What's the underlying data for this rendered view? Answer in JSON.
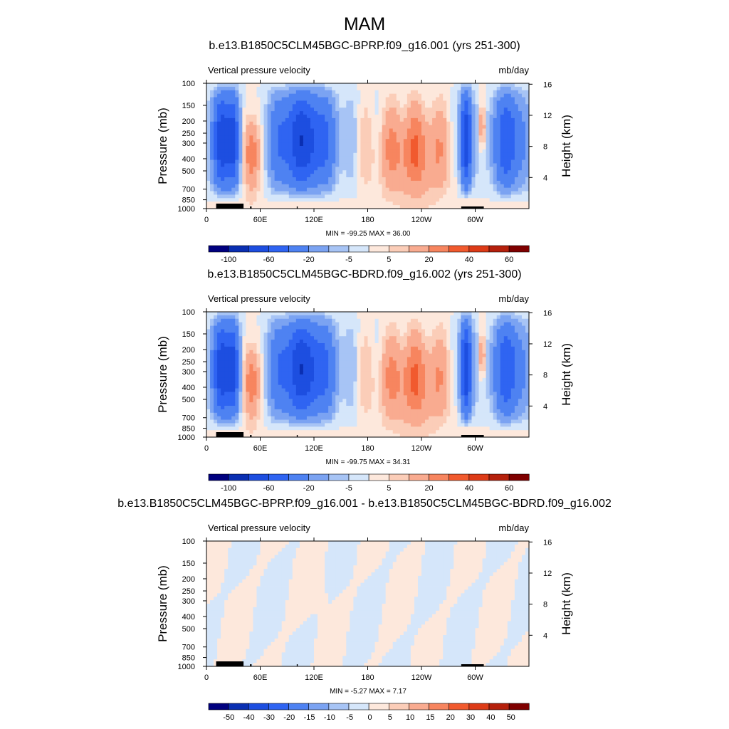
{
  "figure_title": "MAM",
  "chart_data": [
    {
      "type": "heatmap",
      "title": "b.e13.B1850C5CLM45BGC-BPRP.f09_g16.001 (yrs 251-300)",
      "subtitle_left": "Vertical pressure velocity",
      "subtitle_right": "mb/day",
      "ylabel": "Pressure (mb)",
      "ylabel_right": "Height (km)",
      "xticks": [
        "0",
        "60E",
        "120E",
        "180",
        "120W",
        "60W"
      ],
      "yticks": [
        "100",
        "150",
        "200",
        "250",
        "300",
        "400",
        "500",
        "700",
        "850",
        "1000"
      ],
      "ylim": [
        1000,
        100
      ],
      "y2ticks": [
        "16",
        "12",
        "8",
        "4"
      ],
      "stats": "MIN = -99.25  MAX =  36.00",
      "colorbar_labels": [
        "-100",
        "-60",
        "-20",
        "-5",
        "5",
        "20",
        "40",
        "60"
      ],
      "colorbar_colors": [
        "#00007f",
        "#0a2fb2",
        "#1d4ee0",
        "#2f64f2",
        "#4e82f2",
        "#7ba3f2",
        "#a7c4f5",
        "#d5e6fa",
        "#fde8dc",
        "#fbcdb8",
        "#f9ab90",
        "#f7855f",
        "#f15a2e",
        "#dd3b17",
        "#b5200c",
        "#7f0000"
      ],
      "min": -99.25,
      "max": 36.0
    },
    {
      "type": "heatmap",
      "title": "b.e13.B1850C5CLM45BGC-BDRD.f09_g16.002 (yrs 251-300)",
      "subtitle_left": "Vertical pressure velocity",
      "subtitle_right": "mb/day",
      "ylabel": "Pressure (mb)",
      "ylabel_right": "Height (km)",
      "xticks": [
        "0",
        "60E",
        "120E",
        "180",
        "120W",
        "60W"
      ],
      "yticks": [
        "100",
        "150",
        "200",
        "250",
        "300",
        "400",
        "500",
        "700",
        "850",
        "1000"
      ],
      "ylim": [
        1000,
        100
      ],
      "y2ticks": [
        "16",
        "12",
        "8",
        "4"
      ],
      "stats": "MIN = -99.75  MAX =  34.31",
      "colorbar_labels": [
        "-100",
        "-60",
        "-20",
        "-5",
        "5",
        "20",
        "40",
        "60"
      ],
      "colorbar_colors": [
        "#00007f",
        "#0a2fb2",
        "#1d4ee0",
        "#2f64f2",
        "#4e82f2",
        "#7ba3f2",
        "#a7c4f5",
        "#d5e6fa",
        "#fde8dc",
        "#fbcdb8",
        "#f9ab90",
        "#f7855f",
        "#f15a2e",
        "#dd3b17",
        "#b5200c",
        "#7f0000"
      ],
      "min": -99.75,
      "max": 34.31
    },
    {
      "type": "heatmap",
      "title": "b.e13.B1850C5CLM45BGC-BPRP.f09_g16.001 - b.e13.B1850C5CLM45BGC-BDRD.f09_g16.002",
      "subtitle_left": "Vertical pressure velocity",
      "subtitle_right": "mb/day",
      "ylabel": "Pressure (mb)",
      "ylabel_right": "Height (km)",
      "xticks": [
        "0",
        "60E",
        "120E",
        "180",
        "120W",
        "60W"
      ],
      "yticks": [
        "100",
        "150",
        "200",
        "250",
        "300",
        "400",
        "500",
        "700",
        "850",
        "1000"
      ],
      "ylim": [
        1000,
        100
      ],
      "y2ticks": [
        "16",
        "12",
        "8",
        "4"
      ],
      "stats": "MIN = -5.27  MAX =  7.17",
      "colorbar_labels": [
        "-50",
        "-40",
        "-30",
        "-20",
        "-15",
        "-10",
        "-5",
        "0",
        "5",
        "10",
        "15",
        "20",
        "30",
        "40",
        "50"
      ],
      "colorbar_colors": [
        "#00007f",
        "#0a2fb2",
        "#1d4ee0",
        "#2f64f2",
        "#4e82f2",
        "#7ba3f2",
        "#a7c4f5",
        "#d5e6fa",
        "#fde8dc",
        "#fbcdb8",
        "#f9ab90",
        "#f7855f",
        "#f15a2e",
        "#dd3b17",
        "#b5200c",
        "#7f0000"
      ],
      "min": -5.27,
      "max": 7.17
    }
  ]
}
